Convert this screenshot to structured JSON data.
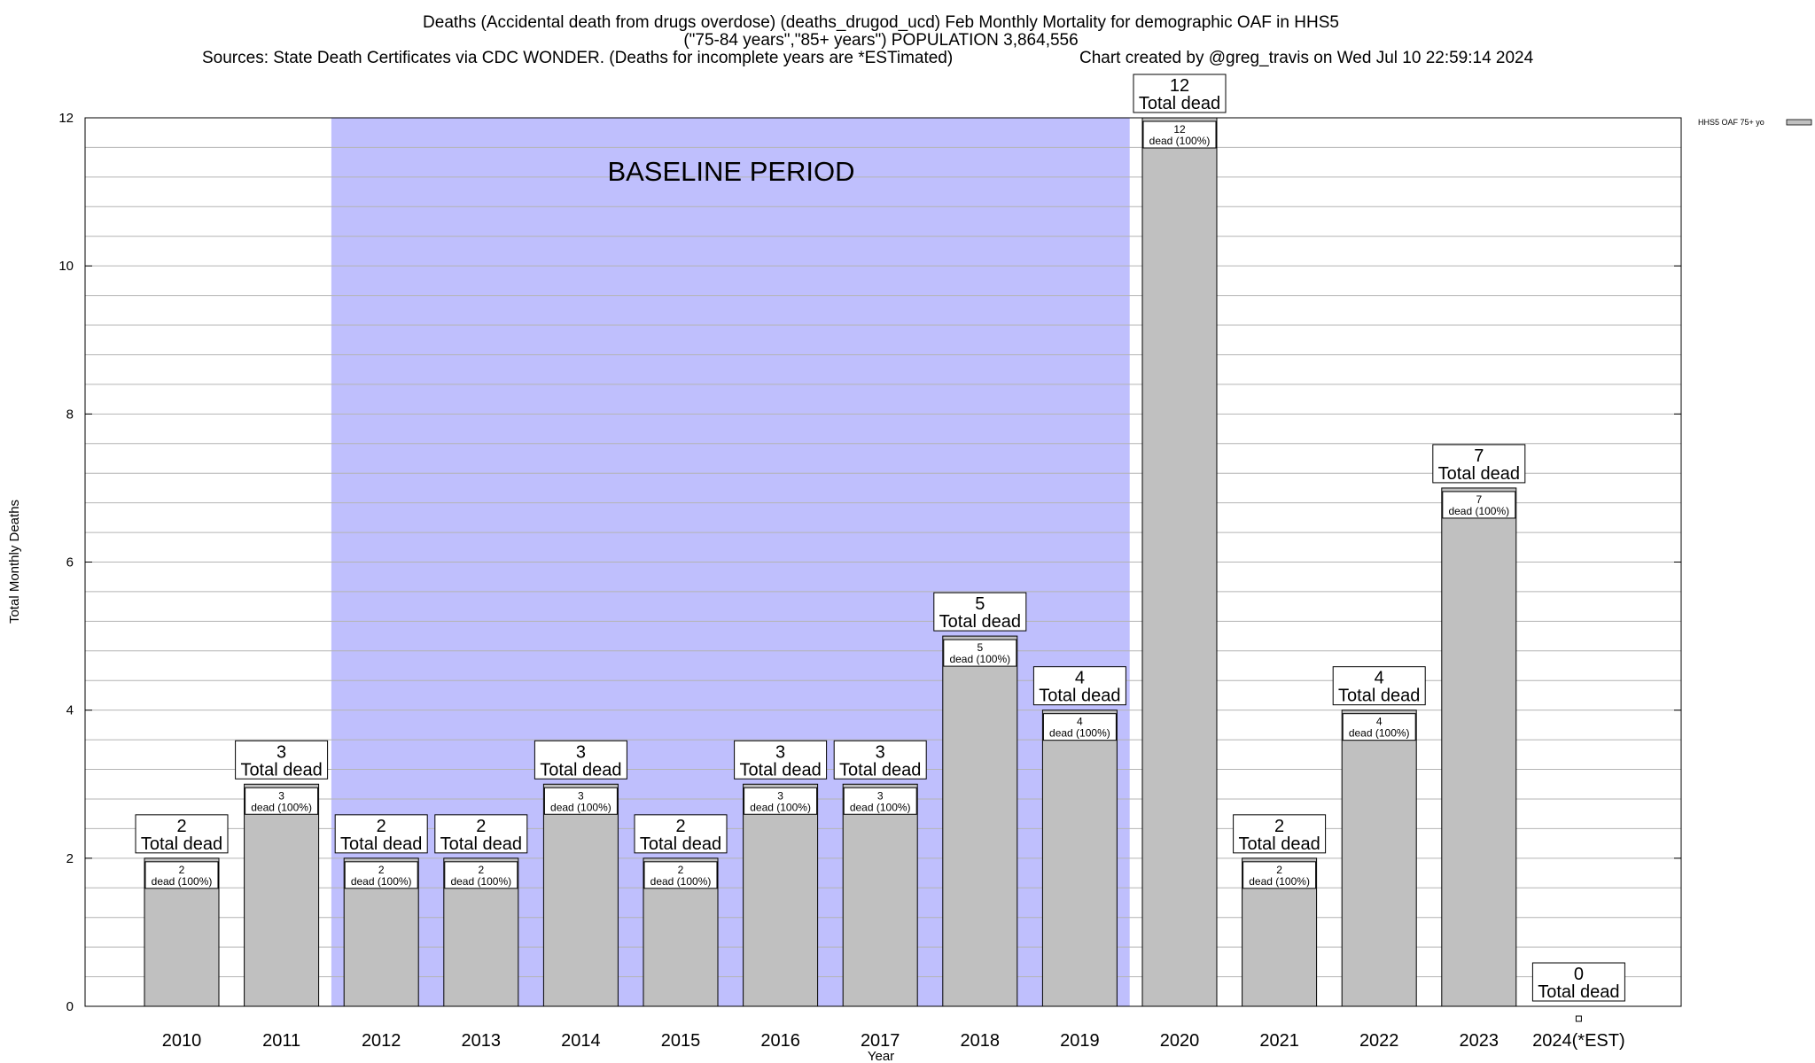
{
  "chart_data": {
    "type": "bar",
    "title_lines": [
      "Deaths (Accidental death from drugs overdose) (deaths_drugod_ucd) Feb Monthly Mortality for demographic OAF in HHS5",
      "(\"75-84 years\",\"85+ years\") POPULATION 3,864,556"
    ],
    "sources_text": "Sources: State Death Certificates via CDC WONDER. (Deaths for incomplete years are *ESTimated)",
    "created_text": "Chart created by @greg_travis on Wed Jul 10 22:59:14 2024",
    "xlabel": "Year",
    "ylabel": "Total Monthly Deaths",
    "ylim": [
      0,
      12
    ],
    "yticks": [
      0,
      2,
      4,
      6,
      8,
      10,
      12
    ],
    "grid": true,
    "categories": [
      "2010",
      "2011",
      "2012",
      "2013",
      "2014",
      "2015",
      "2016",
      "2017",
      "2018",
      "2019",
      "2020",
      "2021",
      "2022",
      "2023",
      "2024(*EST)"
    ],
    "series": [
      {
        "name": "HHS5 OAF 75+ yo",
        "values": [
          2,
          3,
          2,
          2,
          3,
          2,
          3,
          3,
          5,
          4,
          12,
          2,
          4,
          7,
          0
        ]
      }
    ],
    "total_label": "Total dead",
    "inner_label_suffix": "dead (100%)",
    "baseline_period": {
      "label": "BASELINE PERIOD",
      "start": "2012",
      "end": "2019"
    },
    "legend_position": "top-right",
    "colors": {
      "bar": "#c0c0c0",
      "baseline": "#bfbffd",
      "grid": "#b4b4b4"
    }
  }
}
